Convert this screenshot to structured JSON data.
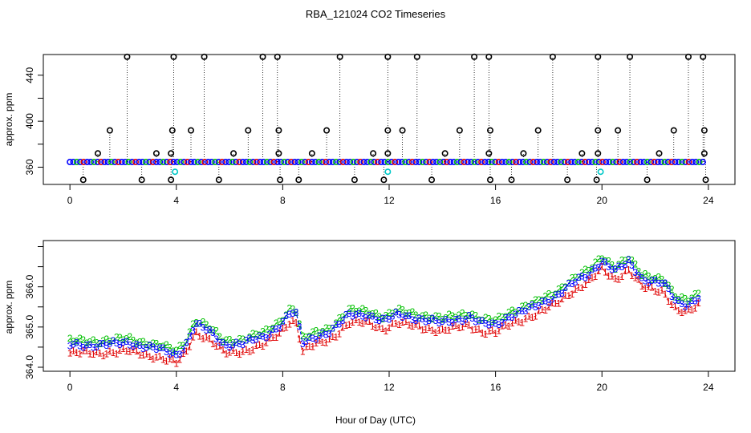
{
  "title": "RBA_121024  CO2 Timeseries",
  "colors": {
    "frame": "#000000",
    "series1": "#e00000",
    "series2": "#00c000",
    "series3": "#0000ff",
    "outlier": "#000000",
    "flag": "#00c8c8"
  },
  "chart_data": [
    {
      "type": "scatter",
      "name": "top-panel",
      "title": "RBA_121024  CO2 Timeseries",
      "xlabel": "",
      "ylabel": "approx. ppm",
      "xlim": [
        -1,
        25
      ],
      "ylim": [
        345,
        458
      ],
      "xticks": [
        0,
        4,
        8,
        12,
        16,
        20,
        24
      ],
      "xtick_labels": [
        "0",
        "4",
        "8",
        "12",
        "16",
        "20",
        "24"
      ],
      "yticks": [
        360,
        380,
        400,
        420,
        440
      ],
      "ytick_labels": [
        "360",
        "",
        "400",
        "",
        "440"
      ],
      "baseline": {
        "start": 0,
        "end": 23.85,
        "step": 0.13,
        "value": 364.5
      },
      "spikes_high": [
        2.15,
        3.9,
        5.05,
        7.25,
        7.8,
        10.15,
        11.95,
        13.05,
        15.2,
        15.75,
        18.15,
        19.85,
        21.05,
        23.25,
        23.8
      ],
      "spikes_mid": [
        1.5,
        3.85,
        4.55,
        6.7,
        7.85,
        9.65,
        11.95,
        12.5,
        14.65,
        15.8,
        17.6,
        19.85,
        20.6,
        22.7,
        23.85
      ],
      "spikes_low": [
        1.05,
        3.25,
        3.8,
        6.15,
        7.85,
        9.1,
        11.4,
        11.95,
        14.1,
        15.75,
        17.05,
        19.25,
        19.85,
        22.15,
        23.85
      ],
      "dips": [
        0.5,
        2.7,
        3.8,
        5.6,
        7.9,
        8.6,
        10.7,
        11.8,
        13.6,
        15.8,
        16.6,
        18.7,
        19.8,
        21.7,
        23.9
      ],
      "flags": [
        [
          3.95,
          356
        ],
        [
          11.95,
          356
        ],
        [
          19.95,
          356
        ]
      ],
      "spike_high_value": 456,
      "spike_mid_value": 392,
      "spike_low_value": 372,
      "dip_value": 349
    },
    {
      "type": "line",
      "name": "bottom-panel",
      "xlabel": "Hour of Day (UTC)",
      "ylabel": "approx. ppm",
      "xlim": [
        -1,
        25
      ],
      "ylim": [
        363.9,
        367.15
      ],
      "xticks": [
        0,
        4,
        8,
        12,
        16,
        20,
        24
      ],
      "xtick_labels": [
        "0",
        "4",
        "8",
        "12",
        "16",
        "20",
        "24"
      ],
      "yticks": [
        364.0,
        364.5,
        365.0,
        365.5,
        366.0,
        366.5,
        367.0
      ],
      "ytick_labels": [
        "364.0",
        "",
        "365.0",
        "",
        "366.0",
        "",
        ""
      ],
      "x_start": 0,
      "x_step": 0.125,
      "series": [
        {
          "name": "1",
          "marker": "1",
          "offset": -0.2
        },
        {
          "name": "2",
          "marker": "2",
          "offset": 0.1
        },
        {
          "name": "3",
          "marker": "3",
          "offset": 0.0
        }
      ],
      "knots": [
        [
          0,
          364.55
        ],
        [
          1.0,
          364.55
        ],
        [
          2.2,
          364.6
        ],
        [
          3.3,
          364.45
        ],
        [
          4.0,
          364.3
        ],
        [
          4.35,
          364.55
        ],
        [
          4.7,
          365.08
        ],
        [
          5.2,
          364.9
        ],
        [
          5.8,
          364.55
        ],
        [
          6.5,
          364.6
        ],
        [
          7.3,
          364.75
        ],
        [
          7.9,
          365.05
        ],
        [
          8.3,
          365.38
        ],
        [
          8.5,
          365.3
        ],
        [
          8.75,
          364.6
        ],
        [
          9.2,
          364.75
        ],
        [
          9.8,
          364.9
        ],
        [
          10.5,
          365.3
        ],
        [
          11.2,
          365.3
        ],
        [
          11.8,
          365.15
        ],
        [
          12.3,
          365.3
        ],
        [
          13.0,
          365.22
        ],
        [
          14.0,
          365.1
        ],
        [
          15.0,
          365.25
        ],
        [
          15.5,
          365.08
        ],
        [
          16.0,
          365.05
        ],
        [
          16.6,
          365.3
        ],
        [
          17.5,
          365.5
        ],
        [
          18.2,
          365.75
        ],
        [
          18.8,
          366.05
        ],
        [
          19.5,
          366.3
        ],
        [
          20.0,
          366.65
        ],
        [
          20.5,
          366.4
        ],
        [
          21.0,
          366.6
        ],
        [
          21.5,
          366.2
        ],
        [
          22.3,
          366.1
        ],
        [
          22.8,
          365.6
        ],
        [
          23.2,
          365.55
        ],
        [
          23.7,
          365.8
        ]
      ]
    }
  ],
  "axis_labels": {
    "top_ylabel": "approx. ppm",
    "bottom_ylabel": "approx. ppm",
    "xlabel": "Hour of Day (UTC)"
  }
}
